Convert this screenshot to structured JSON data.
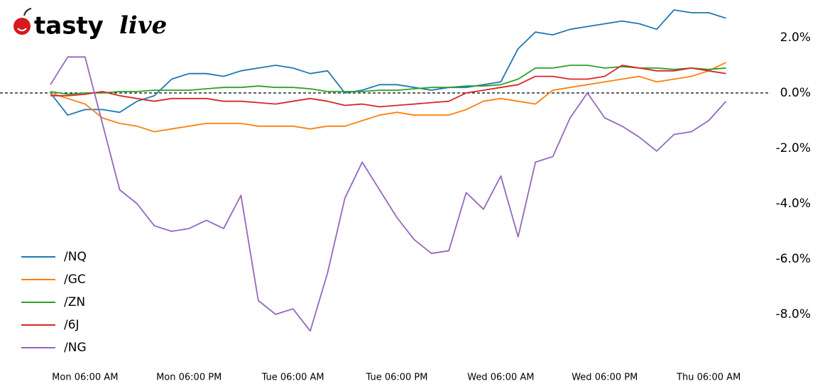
{
  "logo": {
    "bold": "tasty",
    "italic": "live"
  },
  "chart_data": {
    "type": "line",
    "categories": [
      null,
      null,
      "Mon 06:00 AM",
      null,
      null,
      null,
      null,
      null,
      "Mon 06:00 PM",
      null,
      null,
      null,
      null,
      null,
      "Tue 06:00 AM",
      null,
      null,
      null,
      null,
      null,
      "Tue 06:00 PM",
      null,
      null,
      null,
      null,
      null,
      "Wed 06:00 AM",
      null,
      null,
      null,
      null,
      null,
      "Wed 06:00 PM",
      null,
      null,
      null,
      null,
      null,
      "Thu 06:00 AM",
      null
    ],
    "series": [
      {
        "name": "/NQ",
        "color": "#1f77b4",
        "values": [
          0,
          -0.8,
          -0.6,
          -0.6,
          -0.7,
          -0.3,
          -0.1,
          0.5,
          0.7,
          0.7,
          0.6,
          0.8,
          0.9,
          1.0,
          0.9,
          0.7,
          0.8,
          0,
          0.1,
          0.3,
          0.3,
          0.2,
          0.1,
          0.2,
          0.2,
          0.3,
          0.4,
          1.6,
          2.2,
          2.1,
          2.3,
          2.4,
          2.5,
          2.6,
          2.5,
          2.3,
          3.0,
          2.9,
          2.9,
          2.7
        ]
      },
      {
        "name": "/GC",
        "color": "#ff7f0e",
        "values": [
          0,
          -0.2,
          -0.4,
          -0.9,
          -1.1,
          -1.2,
          -1.4,
          -1.3,
          -1.2,
          -1.1,
          -1.1,
          -1.1,
          -1.2,
          -1.2,
          -1.2,
          -1.3,
          -1.2,
          -1.2,
          -1.0,
          -0.8,
          -0.7,
          -0.8,
          -0.8,
          -0.8,
          -0.6,
          -0.3,
          -0.2,
          -0.3,
          -0.4,
          0.1,
          0.2,
          0.3,
          0.4,
          0.5,
          0.6,
          0.4,
          0.5,
          0.6,
          0.8,
          1.1
        ]
      },
      {
        "name": "/ZN",
        "color": "#2ca02c",
        "values": [
          0.05,
          -0.05,
          0,
          0,
          0.05,
          0.05,
          0.1,
          0.1,
          0.1,
          0.15,
          0.2,
          0.2,
          0.25,
          0.2,
          0.2,
          0.15,
          0.05,
          0.05,
          0.05,
          0.1,
          0.1,
          0.15,
          0.2,
          0.2,
          0.25,
          0.25,
          0.3,
          0.5,
          0.9,
          0.9,
          1.0,
          1.0,
          0.9,
          0.95,
          0.9,
          0.9,
          0.85,
          0.9,
          0.85,
          0.9
        ]
      },
      {
        "name": "/6J",
        "color": "#d62728",
        "values": [
          -0.1,
          -0.1,
          -0.05,
          0.05,
          -0.1,
          -0.2,
          -0.3,
          -0.2,
          -0.2,
          -0.2,
          -0.3,
          -0.3,
          -0.35,
          -0.4,
          -0.3,
          -0.2,
          -0.3,
          -0.45,
          -0.4,
          -0.5,
          -0.45,
          -0.4,
          -0.35,
          -0.3,
          0,
          0.1,
          0.2,
          0.3,
          0.6,
          0.6,
          0.5,
          0.5,
          0.6,
          1.0,
          0.9,
          0.8,
          0.8,
          0.9,
          0.8,
          0.7
        ]
      },
      {
        "name": "/NG",
        "color": "#9467bd",
        "values": [
          0.3,
          1.3,
          1.3,
          -1.1,
          -3.5,
          -4.0,
          -4.8,
          -5.0,
          -4.9,
          -4.6,
          -4.9,
          -3.7,
          -7.5,
          -8.0,
          -7.8,
          -8.6,
          -6.5,
          -3.8,
          -2.5,
          -3.5,
          -4.5,
          -5.3,
          -5.8,
          -5.7,
          -3.6,
          -4.2,
          -3.0,
          -5.2,
          -2.5,
          -2.3,
          -0.9,
          0,
          -0.9,
          -1.2,
          -1.6,
          -2.1,
          -1.5,
          -1.4,
          -1.0,
          -0.3
        ]
      }
    ],
    "ylim": [
      -9.5,
      3.2
    ],
    "yticks": [
      {
        "value": 2,
        "label": "2.0%"
      },
      {
        "value": 0,
        "label": "0.0%"
      },
      {
        "value": -2,
        "label": "-2.0%"
      },
      {
        "value": -4,
        "label": "-4.0%"
      },
      {
        "value": -6,
        "label": "-6.0%"
      },
      {
        "value": -8,
        "label": "-8.0%"
      }
    ],
    "grid": false,
    "legend": "lower left"
  }
}
